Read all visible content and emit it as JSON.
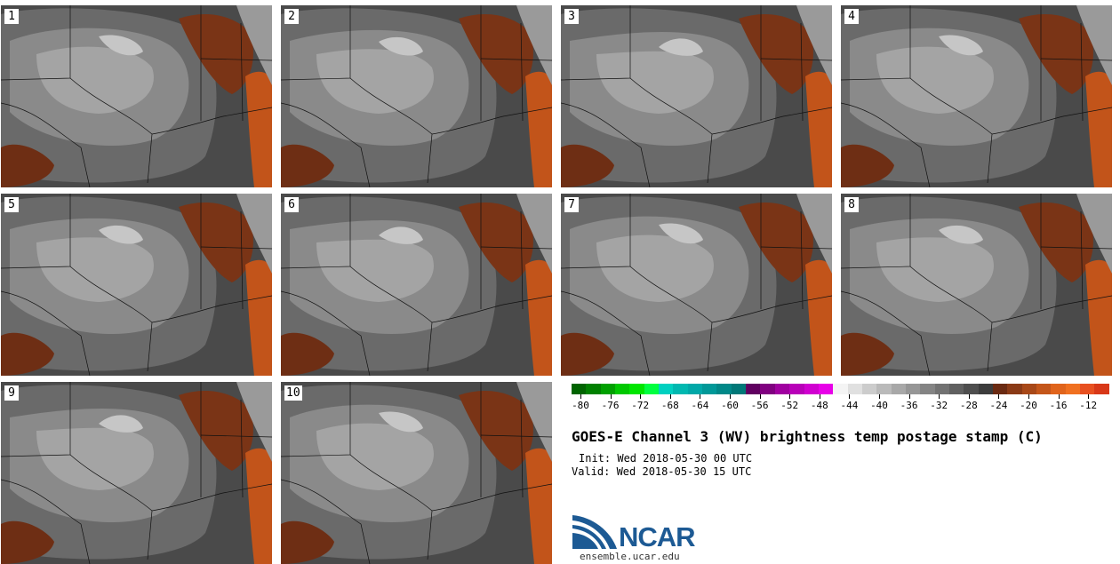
{
  "panels": [
    {
      "label": "1"
    },
    {
      "label": "2"
    },
    {
      "label": "3"
    },
    {
      "label": "4"
    },
    {
      "label": "5"
    },
    {
      "label": "6"
    },
    {
      "label": "7"
    },
    {
      "label": "8"
    },
    {
      "label": "9"
    },
    {
      "label": "10"
    }
  ],
  "colorbar": {
    "colors": [
      "#006400",
      "#008000",
      "#00a000",
      "#00c800",
      "#00e600",
      "#00ff40",
      "#00d0c0",
      "#00b8b0",
      "#00a8a8",
      "#009898",
      "#008888",
      "#007878",
      "#600060",
      "#800080",
      "#a000a0",
      "#b800b8",
      "#d000d0",
      "#e800e8",
      "#f4f4f4",
      "#e0e0e0",
      "#cccccc",
      "#bababa",
      "#a8a8a8",
      "#969696",
      "#848484",
      "#727272",
      "#606060",
      "#4e4e4e",
      "#3c3c3c",
      "#6a2a12",
      "#8a3a16",
      "#a84818",
      "#c4561a",
      "#e0641c",
      "#f07020",
      "#e85020",
      "#d83818"
    ],
    "tick_labels": [
      "-80",
      "-76",
      "-72",
      "-68",
      "-64",
      "-60",
      "-56",
      "-52",
      "-48",
      "-44",
      "-40",
      "-36",
      "-32",
      "-28",
      "-24",
      "-20",
      "-16",
      "-12"
    ]
  },
  "title": "GOES-E Channel 3 (WV) brightness temp postage stamp (C)",
  "init": "Init: Wed 2018-05-30 00 UTC",
  "valid": "Valid: Wed 2018-05-30 15 UTC",
  "logo_text": "NCAR",
  "site": "ensemble.ucar.edu"
}
